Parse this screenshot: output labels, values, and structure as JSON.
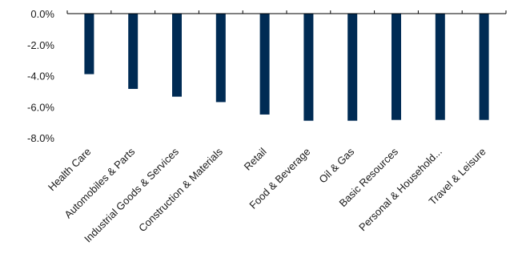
{
  "chart_data": {
    "type": "bar",
    "categories": [
      "Health Care",
      "Automobiles & Parts",
      "Industrial Goods & Services",
      "Construction & Materials",
      "Retail",
      "Food & Beverage",
      "Oil & Gas",
      "Basic Resources",
      "Personal & Household...",
      "Travel & Leisure"
    ],
    "values": [
      -3.9,
      -4.85,
      -5.35,
      -5.7,
      -6.5,
      -6.9,
      -6.9,
      -6.85,
      -6.85,
      -6.85
    ],
    "ylim": [
      -8.0,
      0.0
    ],
    "yticks": [
      0.0,
      -2.0,
      -4.0,
      -6.0,
      -8.0
    ],
    "ytick_labels": [
      "0.0%",
      "-2.0%",
      "-4.0%",
      "-6.0%",
      "-8.0%"
    ],
    "title": "",
    "xlabel": "",
    "ylabel": "",
    "grid": false,
    "bar_color": "#002b54"
  }
}
